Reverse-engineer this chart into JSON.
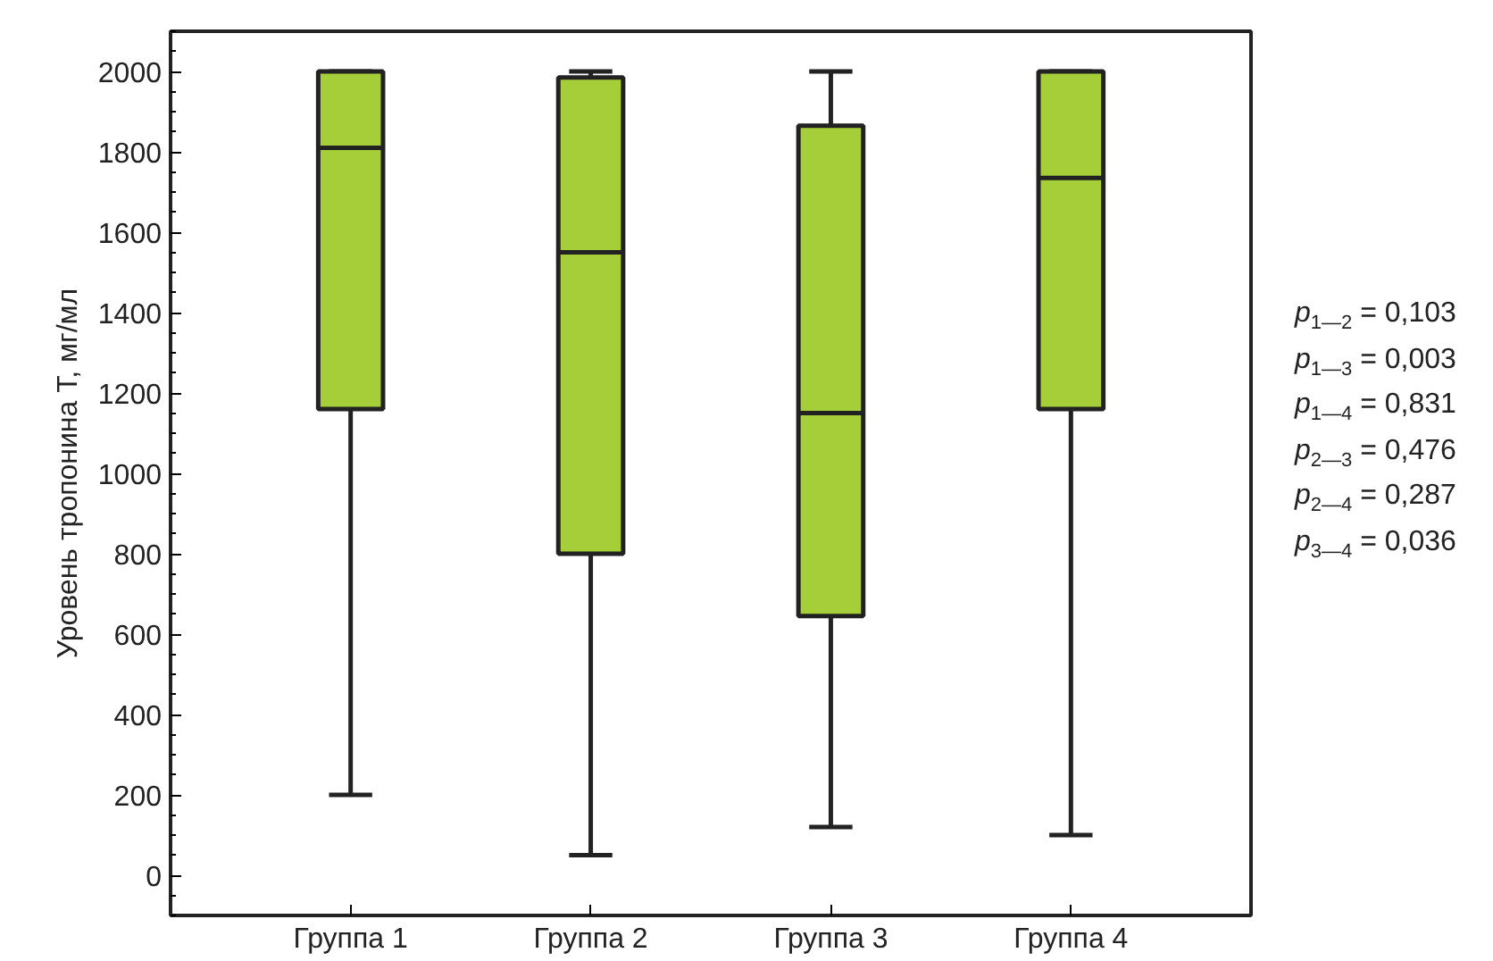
{
  "chart_data": {
    "type": "box",
    "ylabel": "Уровень тропонина Т, мг/мл",
    "categories": [
      "Группа 1",
      "Группа 2",
      "Группа 3",
      "Группа 4"
    ],
    "color": "#a6ce39",
    "boxes": [
      {
        "low": 200,
        "q1": 1160,
        "median": 1810,
        "q3": 2000,
        "high": 2000
      },
      {
        "low": 50,
        "q1": 800,
        "median": 1550,
        "q3": 1985,
        "high": 2000
      },
      {
        "low": 120,
        "q1": 645,
        "median": 1150,
        "q3": 1865,
        "high": 2000
      },
      {
        "low": 100,
        "q1": 1160,
        "median": 1735,
        "q3": 2000,
        "high": 2000
      }
    ],
    "ylim": [
      -100,
      2100
    ],
    "yticks": [
      0,
      200,
      400,
      600,
      800,
      1000,
      1200,
      1400,
      1600,
      1800,
      2000
    ],
    "annotations": [
      "p$_{1—2}$ = 0,103",
      "p$_{1—3}$ = 0,003",
      "p$_{1—4}$ = 0,831",
      "p$_{2—3}$ = 0,476",
      "p$_{2—4}$ = 0,287",
      "p$_{3—4}$ = 0,036"
    ]
  }
}
